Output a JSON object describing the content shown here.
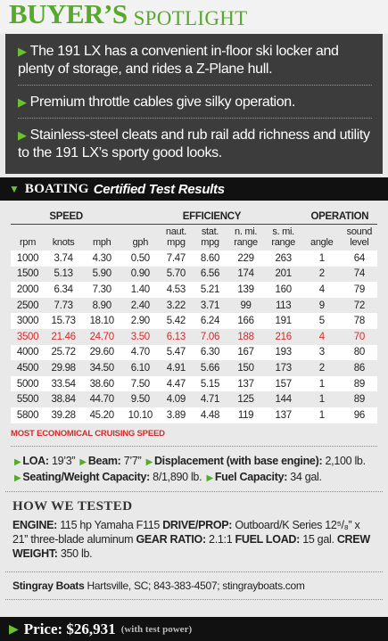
{
  "header": {
    "title_bold": "BUYER’S",
    "title_rest": "SPOTLIGHT"
  },
  "bullets": [
    "The 191 LX has a convenient in-floor ski locker and plenty of storage, and rides a Z-Plane hull.",
    "Premium throttle cables give silky operation.",
    "Stainless-steel cleats and rub rail add richness and utility to the 191 LX’s sporty good looks."
  ],
  "test_results": {
    "brand": "BOATING",
    "heading": "Certified Test Results",
    "groups": [
      {
        "label": "SPEED",
        "span": 3
      },
      {
        "label": "EFFICIENCY",
        "span": 5
      },
      {
        "label": "OPERATION",
        "span": 2
      }
    ],
    "columns": [
      "rpm",
      "knots",
      "mph",
      "gph",
      "naut. mpg",
      "stat. mpg",
      "n. mi. range",
      "s. mi. range",
      "angle",
      "sound level"
    ],
    "rows": [
      [
        "1000",
        "3.74",
        "4.30",
        "0.50",
        "7.47",
        "8.60",
        "229",
        "263",
        "1",
        "64"
      ],
      [
        "1500",
        "5.13",
        "5.90",
        "0.90",
        "5.70",
        "6.56",
        "174",
        "201",
        "2",
        "74"
      ],
      [
        "2000",
        "6.34",
        "7.30",
        "1.40",
        "4.53",
        "5.21",
        "139",
        "160",
        "4",
        "79"
      ],
      [
        "2500",
        "7.73",
        "8.90",
        "2.40",
        "3.22",
        "3.71",
        "99",
        "113",
        "9",
        "72"
      ],
      [
        "3000",
        "15.73",
        "18.10",
        "2.90",
        "5.42",
        "6.24",
        "166",
        "191",
        "5",
        "78"
      ],
      [
        "3500",
        "21.46",
        "24.70",
        "3.50",
        "6.13",
        "7.06",
        "188",
        "216",
        "4",
        "70"
      ],
      [
        "4000",
        "25.72",
        "29.60",
        "4.70",
        "5.47",
        "6.30",
        "167",
        "193",
        "3",
        "80"
      ],
      [
        "4500",
        "29.98",
        "34.50",
        "6.10",
        "4.91",
        "5.66",
        "150",
        "173",
        "2",
        "86"
      ],
      [
        "5000",
        "33.54",
        "38.60",
        "7.50",
        "4.47",
        "5.15",
        "137",
        "157",
        "1",
        "89"
      ],
      [
        "5500",
        "38.84",
        "44.70",
        "9.50",
        "4.09",
        "4.71",
        "125",
        "144",
        "1",
        "89"
      ],
      [
        "5800",
        "39.28",
        "45.20",
        "10.10",
        "3.89",
        "4.48",
        "119",
        "137",
        "1",
        "96"
      ]
    ],
    "highlight_row": 5,
    "note": "MOST ECONOMICAL CRUISING SPEED"
  },
  "specs": [
    {
      "label": "LOA:",
      "value": "19’3”"
    },
    {
      "label": "Beam:",
      "value": "7’7”"
    },
    {
      "label": "Displacement (with base engine):",
      "value": "2,100 lb."
    },
    {
      "label": "Seating/Weight Capacity:",
      "value": "8/1,890 lb."
    },
    {
      "label": "Fuel Capacity:",
      "value": "34 gal."
    }
  ],
  "how_we_tested": {
    "heading": "HOW WE TESTED",
    "items": [
      {
        "label": "ENGINE:",
        "value": "115 hp Yamaha F115"
      },
      {
        "label": "DRIVE/PROP:",
        "value": "Outboard/K Series 12⁵/₈” x 21” three-blade aluminum"
      },
      {
        "label": "GEAR RATIO:",
        "value": "2.1:1"
      },
      {
        "label": "FUEL LOAD:",
        "value": "15 gal."
      },
      {
        "label": "CREW WEIGHT:",
        "value": "350 lb."
      }
    ]
  },
  "contact": {
    "name": "Stingray Boats",
    "details": "Hartsville, SC; 843-383-4507; stingrayboats.com"
  },
  "price": {
    "label": "Price: $26,931",
    "note": "(with test power)"
  }
}
